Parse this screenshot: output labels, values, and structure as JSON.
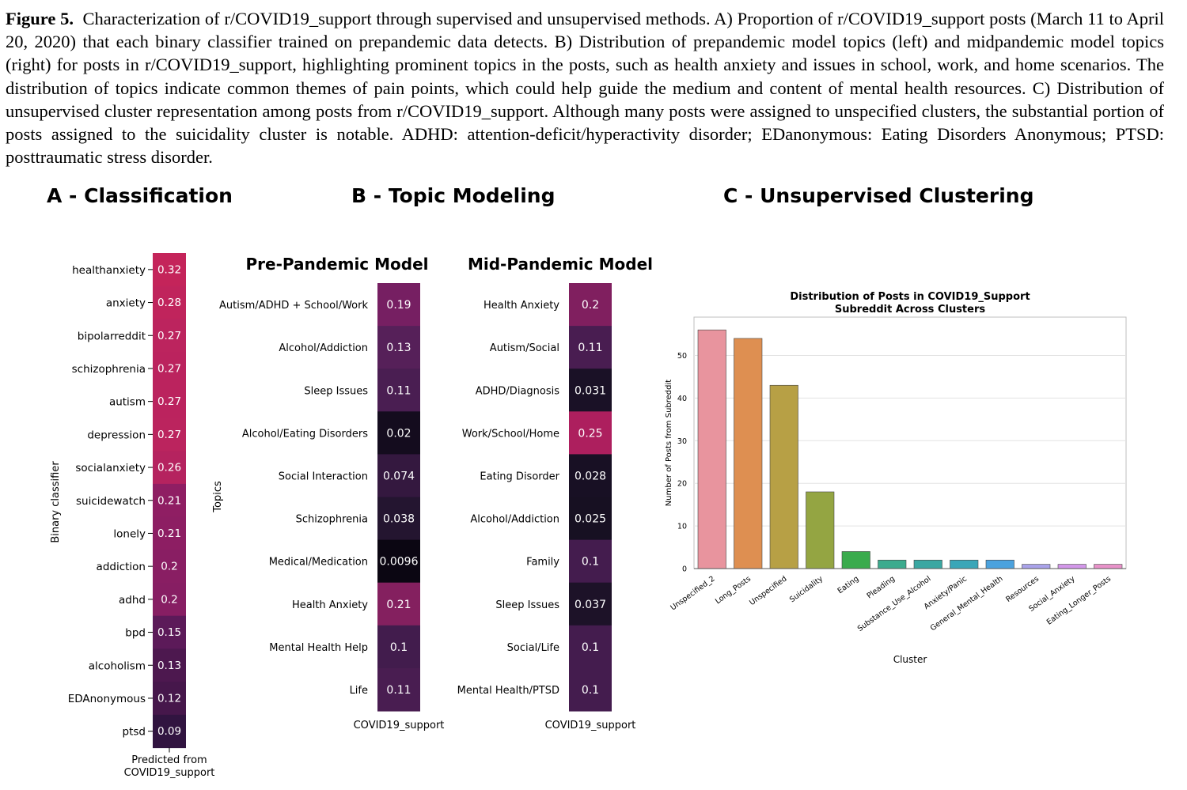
{
  "caption": {
    "label": "Figure 5.",
    "text": "Characterization of r/COVID19_support through supervised and unsupervised methods. A) Proportion of r/COVID19_support posts (March 11 to April 20, 2020) that each binary classifier trained on prepandemic data detects. B) Distribution of prepandemic model topics (left) and midpandemic model topics (right) for posts in r/COVID19_support, highlighting prominent topics in the posts, such as health anxiety and issues in school, work, and home scenarios. The distribution of topics indicate common themes of pain points, which could help guide the medium and content of mental health resources. C) Distribution of unsupervised cluster representation among posts from r/COVID19_support. Although many posts were assigned to unspecified clusters, the substantial portion of posts assigned to the suicidality cluster is notable. ADHD: attention-deficit/hyperactivity disorder; EDanonymous: Eating Disorders Anonymous; PTSD: posttraumatic stress disorder."
  },
  "panels": {
    "a_title": "A - Classification",
    "b_title": "B - Topic Modeling",
    "c_title": "C - Unsupervised Clustering"
  },
  "chart_data": [
    {
      "type": "heatmap",
      "panel": "A",
      "ylabel": "Binary classifier",
      "xlabel": "Predicted from\nCOVID19_support",
      "rows": [
        "healthanxiety",
        "anxiety",
        "bipolarreddit",
        "schizophrenia",
        "autism",
        "depression",
        "socialanxiety",
        "suicidewatch",
        "lonely",
        "addiction",
        "adhd",
        "bpd",
        "alcoholism",
        "EDAnonymous",
        "ptsd"
      ],
      "values": [
        0.32,
        0.28,
        0.27,
        0.27,
        0.27,
        0.27,
        0.26,
        0.21,
        0.21,
        0.2,
        0.2,
        0.15,
        0.13,
        0.12,
        0.09
      ],
      "labels": [
        "0.32",
        "0.28",
        "0.27",
        "0.27",
        "0.27",
        "0.27",
        "0.26",
        "0.21",
        "0.21",
        "0.2",
        "0.2",
        "0.15",
        "0.13",
        "0.12",
        "0.09"
      ],
      "colors": [
        "#c4245a",
        "#c0245c",
        "#bc245e",
        "#bb235e",
        "#bb235e",
        "#bb245e",
        "#b5235f",
        "#8f1e63",
        "#8d1e63",
        "#891e63",
        "#871e63",
        "#5c1a59",
        "#4d184f",
        "#46174b",
        "#311440"
      ]
    },
    {
      "type": "heatmap",
      "panel": "B",
      "title": "Pre-Pandemic Model",
      "ylabel": "Topics",
      "xlabel": "COVID19_support",
      "rows": [
        "Autism/ADHD + School/Work",
        "Alcohol/Addiction",
        "Sleep Issues",
        "Alcohol/Eating Disorders",
        "Social Interaction",
        "Schizophrenia",
        "Medical/Medication",
        "Health Anxiety",
        "Mental Health Help",
        "Life"
      ],
      "values": [
        0.19,
        0.13,
        0.11,
        0.02,
        0.074,
        0.038,
        0.0096,
        0.21,
        0.1,
        0.11
      ],
      "labels": [
        "0.19",
        "0.13",
        "0.11",
        "0.02",
        "0.074",
        "0.038",
        "0.0096",
        "0.21",
        "0.1",
        "0.11"
      ],
      "colors": [
        "#761f62",
        "#562059",
        "#4a1e52",
        "#140c1e",
        "#34183f",
        "#241530",
        "#0b0612",
        "#84205f",
        "#421c4d",
        "#491d51"
      ]
    },
    {
      "type": "heatmap",
      "panel": "B",
      "title": "Mid-Pandemic Model",
      "xlabel": "COVID19_support",
      "rows": [
        "Health Anxiety",
        "Autism/Social",
        "ADHD/Diagnosis",
        "Work/School/Home",
        "Eating Disorder",
        "Alcohol/Addiction",
        "Family",
        "Sleep Issues",
        "Social/Life",
        "Mental Health/PTSD"
      ],
      "values": [
        0.2,
        0.11,
        0.031,
        0.25,
        0.028,
        0.025,
        0.1,
        0.037,
        0.1,
        0.1
      ],
      "labels": [
        "0.2",
        "0.11",
        "0.031",
        "0.25",
        "0.028",
        "0.025",
        "0.1",
        "0.037",
        "0.1",
        "0.1"
      ],
      "colors": [
        "#801f5f",
        "#491d51",
        "#1a1126",
        "#ad1f5e",
        "#181024",
        "#171022",
        "#441c4e",
        "#1d1228",
        "#441c4e",
        "#441c4e"
      ]
    },
    {
      "type": "bar",
      "panel": "C",
      "title": "Distribution of Posts in COVID19_Support\nSubreddit Across Clusters",
      "xlabel": "Cluster",
      "ylabel": "Number of Posts from Subreddit",
      "categories": [
        "Unspecified_2",
        "Long_Posts",
        "Unspecified",
        "Suicidality",
        "Eating",
        "Pleading",
        "Substance_Use_Alcohol",
        "Anxiety/Panic",
        "General_Mental_Health",
        "Resources",
        "Social_Anxiety",
        "Eating_Longer_Posts"
      ],
      "values": [
        56,
        54,
        43,
        18,
        4,
        2,
        2,
        2,
        2,
        1,
        1,
        1
      ],
      "colors": [
        "#e8949e",
        "#de8f51",
        "#b7a045",
        "#94a542",
        "#3aab4d",
        "#3cab8e",
        "#3aa7a2",
        "#3aa6b8",
        "#4ba2de",
        "#a9a2ea",
        "#d397ea",
        "#e892c9"
      ],
      "yticks": [
        0,
        10,
        20,
        30,
        40,
        50
      ],
      "ylim": [
        0,
        59
      ]
    }
  ]
}
